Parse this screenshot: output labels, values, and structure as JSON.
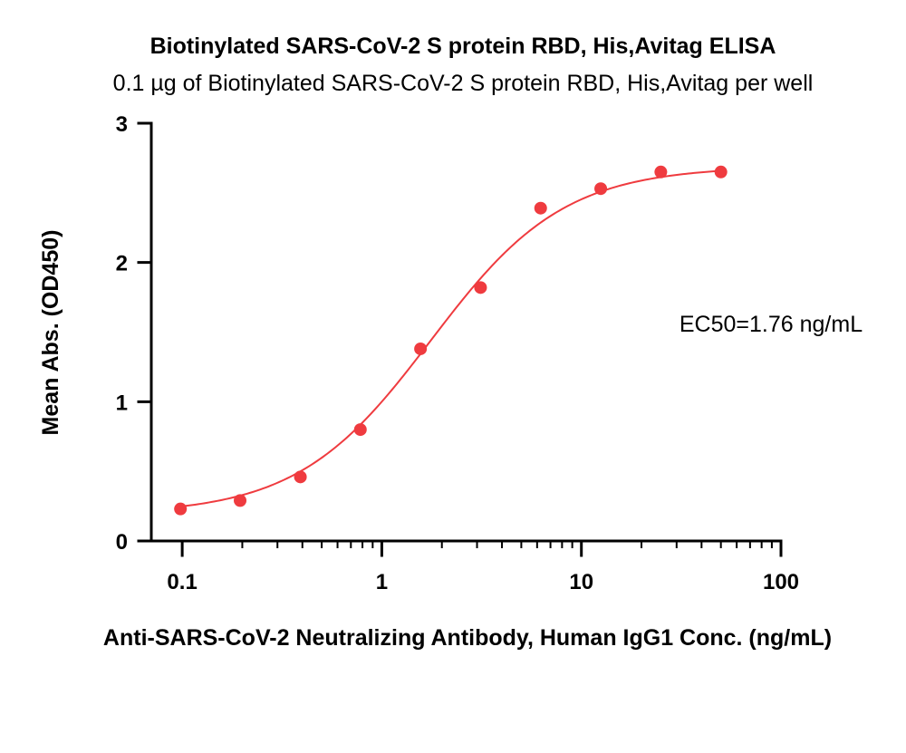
{
  "chart_data": {
    "type": "scatter",
    "title": "Biotinylated SARS-CoV-2 S protein RBD, His,Avitag ELISA",
    "subtitle": "0.1 µg of Biotinylated SARS-CoV-2 S protein RBD, His,Avitag per well",
    "xlabel": "Anti-SARS-CoV-2 Neutralizing Antibody, Human IgG1 Conc. (ng/mL)",
    "ylabel": "Mean Abs. (OD450)",
    "x_scale": "log",
    "xlim": [
      0.07,
      100
    ],
    "ylim": [
      0,
      3
    ],
    "x_ticks": [
      0.1,
      1,
      10,
      100
    ],
    "x_tick_labels": [
      "0.1",
      "1",
      "10",
      "100"
    ],
    "y_ticks": [
      0,
      1,
      2,
      3
    ],
    "y_tick_labels": [
      "0",
      "1",
      "2",
      "3"
    ],
    "grid": false,
    "series": [
      {
        "color": "#ef3b3f",
        "x": [
          0.098,
          0.195,
          0.391,
          0.781,
          1.563,
          3.125,
          6.25,
          12.5,
          25,
          50
        ],
        "y": [
          0.23,
          0.29,
          0.46,
          0.8,
          1.38,
          1.82,
          2.39,
          2.53,
          2.65,
          2.65
        ]
      }
    ],
    "fit_curve": {
      "model": "4PL",
      "color": "#ef3b3f",
      "bottom": 0.19,
      "top": 2.69,
      "ec50": 1.76,
      "hill": 1.3,
      "x_range": [
        0.1,
        50
      ]
    },
    "annotation": "EC50=1.76 ng/mL"
  }
}
